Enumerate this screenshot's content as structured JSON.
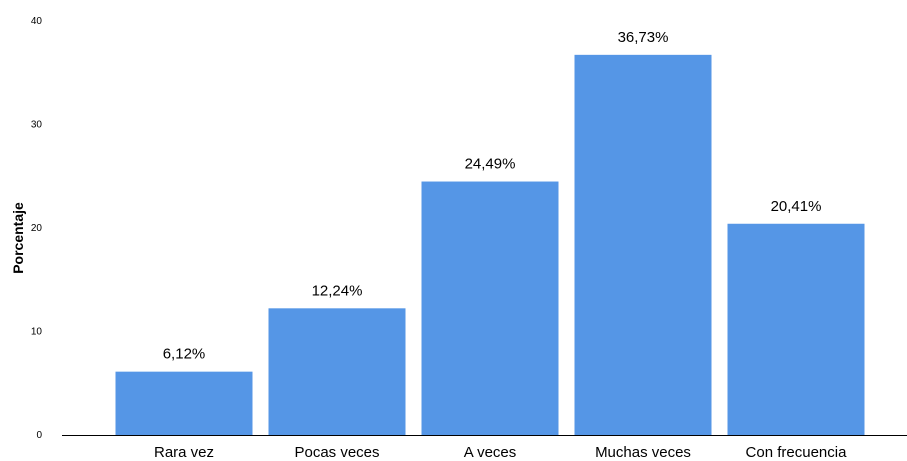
{
  "chart_data": {
    "type": "bar",
    "categories": [
      "Rara vez",
      "Pocas veces",
      "A veces",
      "Muchas veces",
      "Con frecuencia"
    ],
    "values": [
      6.12,
      12.24,
      24.49,
      36.73,
      20.41
    ],
    "value_labels": [
      "6,12%",
      "12,24%",
      "24,49%",
      "36,73%",
      "20,41%"
    ],
    "title": "",
    "xlabel": "",
    "ylabel": "Porcentaje",
    "ylim": [
      0,
      40
    ],
    "yticks": [
      0,
      10,
      20,
      30,
      40
    ],
    "grid": false,
    "bar_color": "#5596e6"
  }
}
